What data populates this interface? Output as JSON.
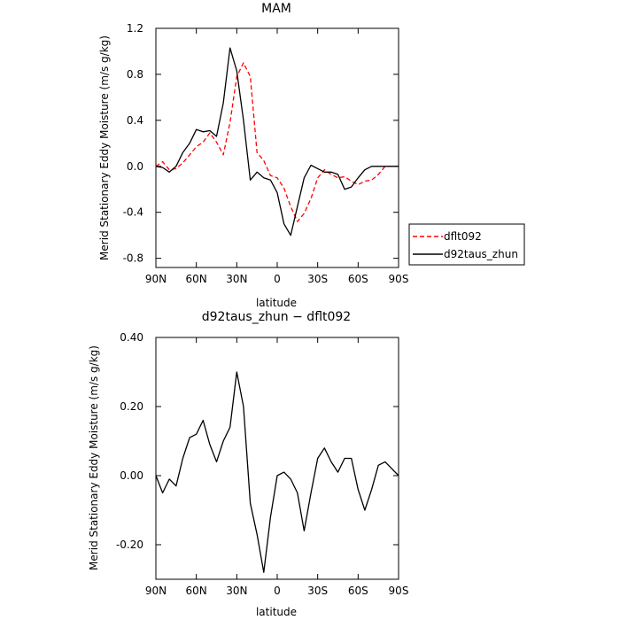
{
  "chart_data": [
    {
      "type": "line",
      "title": "MAM",
      "xlabel": "latitude",
      "ylabel": "Merid Stationary Eddy Moisture (m/s g/kg)",
      "x_tick_labels": [
        "90N",
        "60N",
        "30N",
        "0",
        "30S",
        "60S",
        "90S"
      ],
      "x_tick_values": [
        90,
        60,
        30,
        0,
        -30,
        -60,
        -90
      ],
      "xlim": [
        90,
        -90
      ],
      "y_tick_labels": [
        "1.2",
        "0.8",
        "0.4",
        "0.0",
        "-0.4",
        "-0.8"
      ],
      "y_tick_values": [
        1.2,
        0.8,
        0.4,
        0.0,
        -0.4,
        -0.8
      ],
      "ylim": [
        -0.88,
        1.2
      ],
      "grid": false,
      "legend_position": "right-outside",
      "series": [
        {
          "name": "dflt092",
          "color": "#ff0000",
          "style": "dashed",
          "x": [
            90,
            85,
            80,
            75,
            70,
            65,
            60,
            55,
            50,
            45,
            40,
            35,
            30,
            25,
            20,
            15,
            10,
            5,
            0,
            -5,
            -10,
            -15,
            -20,
            -25,
            -30,
            -35,
            -40,
            -45,
            -50,
            -55,
            -60,
            -65,
            -70,
            -75,
            -80,
            -85,
            -90
          ],
          "y": [
            0.0,
            0.04,
            -0.03,
            -0.02,
            0.03,
            0.1,
            0.17,
            0.21,
            0.29,
            0.21,
            0.1,
            0.38,
            0.78,
            0.9,
            0.78,
            0.12,
            0.05,
            -0.08,
            -0.1,
            -0.19,
            -0.35,
            -0.48,
            -0.41,
            -0.28,
            -0.1,
            -0.03,
            -0.07,
            -0.1,
            -0.09,
            -0.13,
            -0.16,
            -0.13,
            -0.12,
            -0.07,
            0.0,
            0.0,
            0.0
          ]
        },
        {
          "name": "d92taus_zhun",
          "color": "#000000",
          "style": "solid",
          "x": [
            90,
            85,
            80,
            75,
            70,
            65,
            60,
            55,
            50,
            45,
            40,
            35,
            30,
            25,
            20,
            15,
            10,
            5,
            0,
            -5,
            -10,
            -15,
            -20,
            -25,
            -30,
            -35,
            -40,
            -45,
            -50,
            -55,
            -60,
            -65,
            -70,
            -75,
            -80,
            -85,
            -90
          ],
          "y": [
            0.0,
            -0.01,
            -0.05,
            0.0,
            0.12,
            0.2,
            0.32,
            0.3,
            0.31,
            0.26,
            0.55,
            1.03,
            0.83,
            0.4,
            -0.12,
            -0.05,
            -0.1,
            -0.12,
            -0.23,
            -0.5,
            -0.6,
            -0.35,
            -0.1,
            0.01,
            -0.02,
            -0.05,
            -0.05,
            -0.07,
            -0.2,
            -0.18,
            -0.1,
            -0.03,
            0.0,
            0.0,
            0.0,
            0.0,
            0.0
          ]
        }
      ]
    },
    {
      "type": "line",
      "title": "d92taus_zhun − dflt092",
      "xlabel": "latitude",
      "ylabel": "Merid Stationary Eddy Moisture (m/s g/kg)",
      "x_tick_labels": [
        "90N",
        "60N",
        "30N",
        "0",
        "30S",
        "60S",
        "90S"
      ],
      "x_tick_values": [
        90,
        60,
        30,
        0,
        -30,
        -60,
        -90
      ],
      "xlim": [
        90,
        -90
      ],
      "y_tick_labels": [
        "0.40",
        "0.20",
        "0.00",
        "-0.20"
      ],
      "y_tick_values": [
        0.4,
        0.2,
        0.0,
        -0.2
      ],
      "ylim": [
        -0.3,
        0.4
      ],
      "grid": false,
      "series": [
        {
          "color": "#000000",
          "style": "solid",
          "x": [
            90,
            85,
            80,
            75,
            70,
            65,
            60,
            55,
            50,
            45,
            40,
            35,
            30,
            25,
            20,
            15,
            10,
            5,
            0,
            -5,
            -10,
            -15,
            -20,
            -25,
            -30,
            -35,
            -40,
            -45,
            -50,
            -55,
            -60,
            -65,
            -70,
            -75,
            -80,
            -85,
            -90
          ],
          "y": [
            0.0,
            -0.05,
            -0.01,
            -0.03,
            0.05,
            0.11,
            0.12,
            0.16,
            0.09,
            0.04,
            0.1,
            0.14,
            0.3,
            0.2,
            -0.08,
            -0.17,
            -0.28,
            -0.12,
            0.0,
            0.01,
            -0.01,
            -0.05,
            -0.16,
            -0.05,
            0.05,
            0.08,
            0.04,
            0.01,
            0.05,
            0.05,
            -0.04,
            -0.1,
            -0.04,
            0.03,
            0.04,
            0.02,
            0.0
          ]
        }
      ]
    }
  ]
}
